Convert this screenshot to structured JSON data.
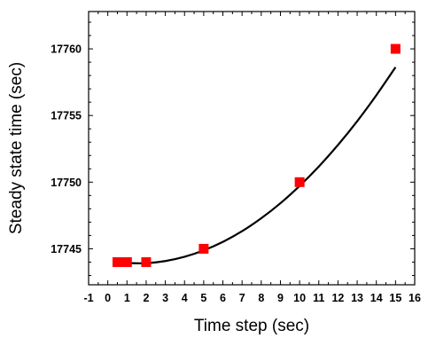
{
  "chart_data": {
    "type": "scatter",
    "title": "",
    "xlabel": "Time step (sec)",
    "ylabel": "Steady state time (sec)",
    "xlim": [
      -1,
      16
    ],
    "ylim": [
      17742.3,
      17762.8
    ],
    "x_ticks": [
      -1,
      0,
      1,
      2,
      3,
      4,
      5,
      6,
      7,
      8,
      9,
      10,
      11,
      12,
      13,
      14,
      15,
      16
    ],
    "x_tick_labels": [
      "-1",
      "0",
      "1",
      "2",
      "3",
      "4",
      "5",
      "6",
      "7",
      "8",
      "9",
      "10",
      "11",
      "12",
      "13",
      "14",
      "15",
      "16"
    ],
    "y_ticks": [
      17745,
      17750,
      17755,
      17760
    ],
    "y_tick_labels": [
      "17745",
      "17750",
      "17755",
      "17760"
    ],
    "grid": false,
    "legend": "none",
    "series": [
      {
        "marker": "square",
        "color": "#ff0000",
        "x": [
          0.5,
          1,
          2,
          5,
          10,
          15
        ],
        "y": [
          17744,
          17744,
          17744,
          17745,
          17750,
          17760
        ]
      }
    ],
    "fit_curve": {
      "color": "#000000",
      "x": [
        0.5,
        1,
        2,
        3,
        4,
        5,
        6,
        7,
        8,
        9,
        10,
        11,
        12,
        13,
        14,
        15
      ],
      "y": [
        17743.95,
        17743.93,
        17743.92,
        17744.08,
        17744.4,
        17744.88,
        17745.52,
        17746.32,
        17747.29,
        17748.42,
        17749.72,
        17751.17,
        17752.79,
        17754.57,
        17756.52,
        17758.62
      ]
    }
  }
}
